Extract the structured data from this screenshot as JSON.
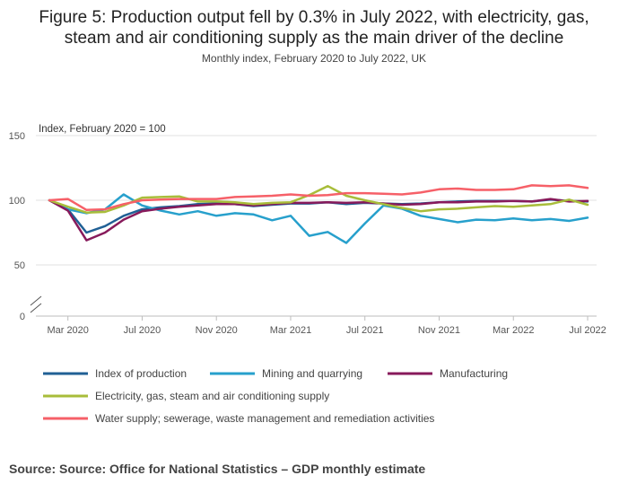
{
  "chart_data": {
    "type": "line",
    "title_line1": "Figure 5: Production output fell by 0.3% in July 2022, with electricity, gas,",
    "title_line2": "steam and air conditioning supply as the main driver of the decline",
    "subtitle": "Monthly index, February 2020 to July 2022, UK",
    "ylabel": "Index, February 2020 = 100",
    "xlabel": "",
    "ylim": [
      0,
      150
    ],
    "yticks": [
      0,
      50,
      100,
      150
    ],
    "x": [
      "Feb 2020",
      "Mar 2020",
      "Apr 2020",
      "May 2020",
      "Jun 2020",
      "Jul 2020",
      "Aug 2020",
      "Sep 2020",
      "Oct 2020",
      "Nov 2020",
      "Dec 2020",
      "Jan 2021",
      "Feb 2021",
      "Mar 2021",
      "Apr 2021",
      "May 2021",
      "Jun 2021",
      "Jul 2021",
      "Aug 2021",
      "Sep 2021",
      "Oct 2021",
      "Nov 2021",
      "Dec 2021",
      "Jan 2022",
      "Feb 2022",
      "Mar 2022",
      "Apr 2022",
      "May 2022",
      "Jun 2022",
      "Jul 2022"
    ],
    "xticks": [
      {
        "index": 1,
        "label": "Mar 2020"
      },
      {
        "index": 5,
        "label": "Jul 2020"
      },
      {
        "index": 9,
        "label": "Nov 2020"
      },
      {
        "index": 13,
        "label": "Mar 2021"
      },
      {
        "index": 17,
        "label": "Jul 2021"
      },
      {
        "index": 21,
        "label": "Nov 2021"
      },
      {
        "index": 25,
        "label": "Mar 2022"
      },
      {
        "index": 29,
        "label": "Jul 2022"
      }
    ],
    "series": [
      {
        "name": "Index of production",
        "color": "#206095",
        "values": [
          100,
          93,
          75,
          80,
          88,
          93,
          94.5,
          95.5,
          97,
          97.5,
          97,
          95.5,
          96.5,
          97.5,
          97.5,
          98.5,
          97,
          98,
          97.5,
          97,
          97.5,
          98.5,
          99,
          99.5,
          99.5,
          99.5,
          99,
          100.5,
          99.5,
          99
        ]
      },
      {
        "name": "Mining and quarrying",
        "color": "#27a0cc",
        "values": [
          100,
          93,
          90,
          93,
          104.5,
          96,
          92,
          89,
          91.5,
          88,
          90,
          89,
          84.5,
          88,
          72.5,
          75.5,
          67,
          82,
          96,
          93.5,
          88,
          85.5,
          83,
          85,
          84.5,
          86,
          84.5,
          85.5,
          84,
          86.5
        ]
      },
      {
        "name": "Manufacturing",
        "color": "#871a5b",
        "values": [
          100,
          92,
          69,
          75,
          85,
          91.5,
          93.5,
          95,
          96,
          97,
          97,
          96,
          97,
          98,
          98,
          98.5,
          98,
          98.5,
          97.5,
          96.5,
          97,
          98.5,
          98.5,
          99,
          99,
          99.5,
          99,
          101,
          99,
          99.5
        ]
      },
      {
        "name": "Electricity, gas, steam and air conditioning supply",
        "color": "#a8bd3a",
        "values": [
          100,
          95,
          90.5,
          91,
          96,
          102,
          102.5,
          103,
          99,
          99,
          98.5,
          97,
          98,
          98.5,
          104,
          111,
          103.5,
          100,
          97,
          94,
          91.5,
          93,
          93.5,
          94.5,
          95.5,
          95,
          96,
          97,
          100.5,
          96.5
        ]
      },
      {
        "name": "Water supply; sewerage, waste management and remediation activities",
        "color": "#f66068",
        "values": [
          100,
          101,
          92.5,
          93,
          97,
          100,
          100.5,
          101,
          101,
          101,
          102.5,
          103,
          103.5,
          104.5,
          103.5,
          104,
          105.5,
          105.5,
          105,
          104.5,
          106,
          108.5,
          109,
          108,
          108,
          108.5,
          111.5,
          111,
          111.5,
          109.5
        ]
      }
    ]
  },
  "source": "Source: Source: Office for National Statistics – GDP monthly estimate"
}
